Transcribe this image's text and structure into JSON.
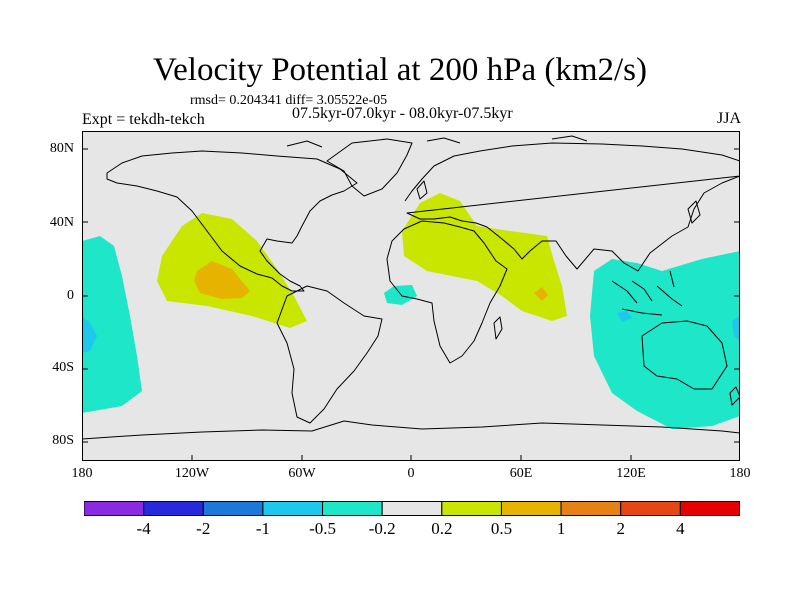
{
  "title": "Velocity Potential at 200 hPa (km2/s)",
  "stats": "rmsd= 0.204341 diff= 3.05522e-05",
  "experiment": "Expt = tekdh-tekch",
  "period": "07.5kyr-07.0kyr - 08.0kyr-07.5kyr",
  "season": "JJA",
  "map": {
    "projection": "cylindrical equidistant",
    "lon_range": [
      -180,
      180
    ],
    "lat_range": [
      -90,
      90
    ],
    "lat_ticks": [
      "80N",
      "40N",
      "0",
      "40S",
      "80S"
    ],
    "lon_ticks": [
      "180",
      "120W",
      "60W",
      "0",
      "60E",
      "120E",
      "180"
    ],
    "anomaly_regions": [
      {
        "name": "east-pacific-americas-positive",
        "class": "0.2 to 0.5",
        "center_lon": -95,
        "center_lat": 10
      },
      {
        "name": "east-pacific-core",
        "class": "0.5 to 1",
        "center_lon": -103,
        "center_lat": 5
      },
      {
        "name": "north-africa-middle-east-positive",
        "class": "0.2 to 0.5",
        "center_lon": 35,
        "center_lat": 25
      },
      {
        "name": "arabian-sea-core",
        "class": "0.5 to 1",
        "center_lon": 70,
        "center_lat": 2
      },
      {
        "name": "gulf-of-guinea-negative",
        "class": "-0.5 to -0.2",
        "center_lon": -7,
        "center_lat": 0
      },
      {
        "name": "indo-pacific-negative",
        "class": "-0.5 to -0.2",
        "center_lon": 130,
        "center_lat": -10
      },
      {
        "name": "maritime-continent-core",
        "class": "-1 to -0.5",
        "center_lon": 120,
        "center_lat": -15
      },
      {
        "name": "central-pacific-negative",
        "class": "-0.5 to -0.2",
        "center_lon": -170,
        "center_lat": -10
      }
    ]
  },
  "colorbar": {
    "colors": [
      "#8a2be2",
      "#2828dc",
      "#1e78dc",
      "#1ec8ec",
      "#1ee6c8",
      "#e6e6e6",
      "#c8e600",
      "#e6b400",
      "#e68214",
      "#e64614",
      "#e60000"
    ],
    "labels": [
      "-4",
      "-2",
      "-1",
      "-0.5",
      "-0.2",
      "0.2",
      "0.5",
      "1",
      "2",
      "4"
    ]
  }
}
